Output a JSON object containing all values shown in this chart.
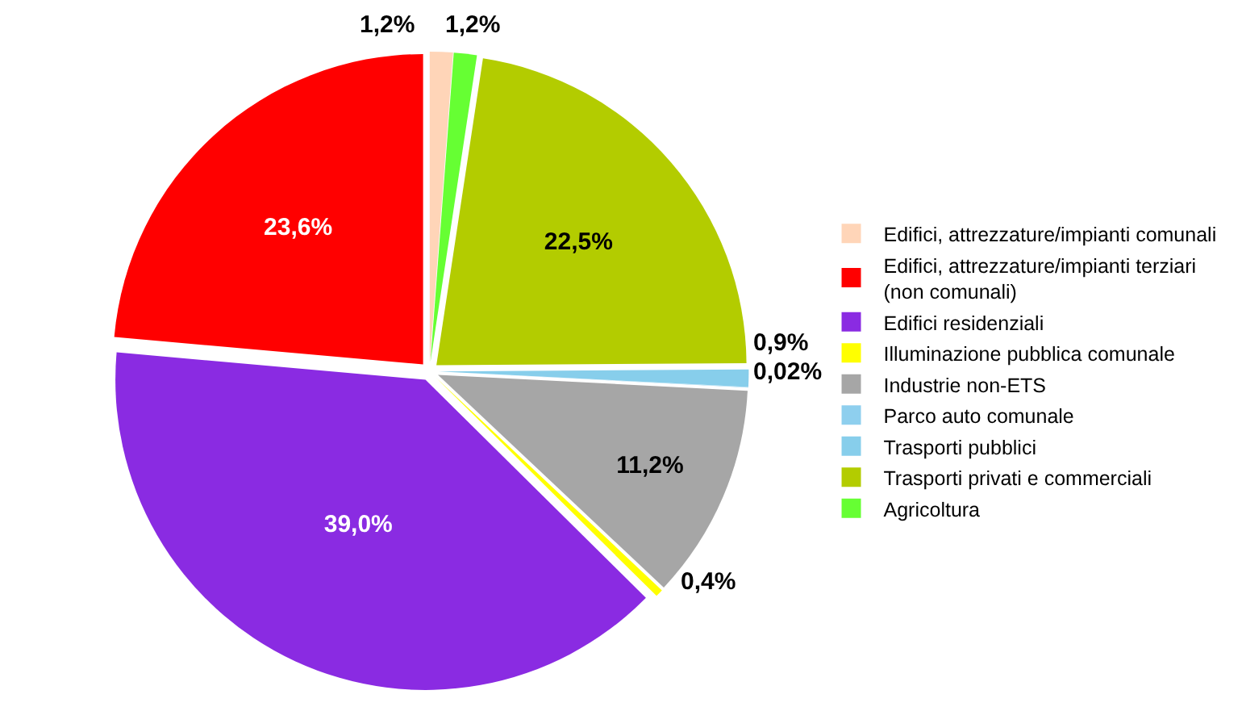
{
  "chart_data": {
    "type": "pie",
    "categories": [
      "Edifici, attrezzature/impianti comunali",
      "Edifici, attrezzature/impianti terziari (non comunali)",
      "Edifici residenziali",
      "Illuminazione pubblica comunale",
      "Industrie non-ETS",
      "Parco auto comunale",
      "Trasporti pubblici",
      "Trasporti privati e commerciali",
      "Agricoltura"
    ],
    "values": [
      1.2,
      23.6,
      39.0,
      0.4,
      11.2,
      0.02,
      0.9,
      22.5,
      1.2
    ],
    "value_labels": [
      "1,2%",
      "23,6%",
      "39,0%",
      "0,4%",
      "11,2%",
      "0,02%",
      "0,9%",
      "22,5%",
      "1,2%"
    ],
    "colors": [
      "#ffd5b8",
      "#ff0000",
      "#8a2be2",
      "#ffff00",
      "#a6a6a6",
      "#8ecfee",
      "#87ceeb",
      "#b3cc00",
      "#66ff33"
    ],
    "legend": "right"
  }
}
